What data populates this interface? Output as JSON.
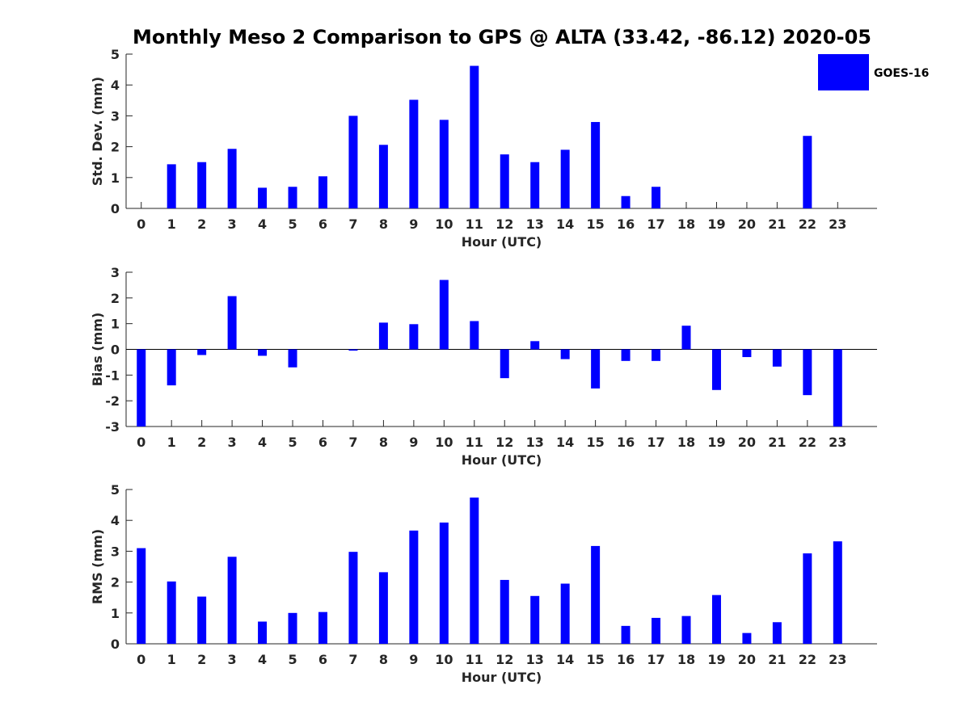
{
  "chart_data": [
    {
      "type": "bar",
      "title": "Monthly Meso 2 Comparison to GPS @ ALTA (33.42, -86.12) 2020-05",
      "xlabel": "Hour (UTC)",
      "ylabel": "Std. Dev. (mm)",
      "ylim": [
        0,
        5
      ],
      "yticks": [
        "0",
        "1",
        "2",
        "3",
        "4",
        "5"
      ],
      "categories": [
        "0",
        "1",
        "2",
        "3",
        "4",
        "5",
        "6",
        "7",
        "8",
        "9",
        "10",
        "11",
        "12",
        "13",
        "14",
        "15",
        "16",
        "17",
        "18",
        "19",
        "20",
        "21",
        "22",
        "23"
      ],
      "series": [
        {
          "name": "GOES-16",
          "color": "#0000ff",
          "values": [
            0,
            1.43,
            1.5,
            1.93,
            0.67,
            0.7,
            1.04,
            3.0,
            2.06,
            3.52,
            2.87,
            4.62,
            1.75,
            1.5,
            1.9,
            2.8,
            0.4,
            0.7,
            0,
            0,
            0,
            0,
            2.35,
            0
          ]
        }
      ],
      "legend": {
        "entries": [
          "GOES-16"
        ],
        "location": "top-right"
      }
    },
    {
      "type": "bar",
      "xlabel": "Hour (UTC)",
      "ylabel": "Bias (mm)",
      "ylim": [
        -3,
        3
      ],
      "yticks": [
        "-3",
        "-2",
        "-1",
        "0",
        "1",
        "2",
        "3"
      ],
      "categories": [
        "0",
        "1",
        "2",
        "3",
        "4",
        "5",
        "6",
        "7",
        "8",
        "9",
        "10",
        "11",
        "12",
        "13",
        "14",
        "15",
        "16",
        "17",
        "18",
        "19",
        "20",
        "21",
        "22",
        "23"
      ],
      "series": [
        {
          "name": "GOES-16",
          "color": "#0000ff",
          "values": [
            -3.1,
            -1.4,
            -0.22,
            2.07,
            -0.25,
            -0.7,
            0,
            -0.05,
            1.04,
            0.98,
            2.7,
            1.1,
            -1.12,
            0.32,
            -0.38,
            -1.52,
            -0.45,
            -0.45,
            0.92,
            -1.58,
            -0.3,
            -0.67,
            -1.78,
            -3.1
          ]
        }
      ]
    },
    {
      "type": "bar",
      "xlabel": "Hour (UTC)",
      "ylabel": "RMS (mm)",
      "ylim": [
        0,
        5
      ],
      "yticks": [
        "0",
        "1",
        "2",
        "3",
        "4",
        "5"
      ],
      "categories": [
        "0",
        "1",
        "2",
        "3",
        "4",
        "5",
        "6",
        "7",
        "8",
        "9",
        "10",
        "11",
        "12",
        "13",
        "14",
        "15",
        "16",
        "17",
        "18",
        "19",
        "20",
        "21",
        "22",
        "23"
      ],
      "series": [
        {
          "name": "GOES-16",
          "color": "#0000ff",
          "values": [
            3.1,
            2.02,
            1.53,
            2.82,
            0.72,
            1.0,
            1.03,
            2.98,
            2.32,
            3.67,
            3.93,
            4.74,
            2.07,
            1.55,
            1.95,
            3.17,
            0.58,
            0.84,
            0.9,
            1.58,
            0.35,
            0.7,
            2.93,
            3.32
          ]
        }
      ]
    }
  ]
}
